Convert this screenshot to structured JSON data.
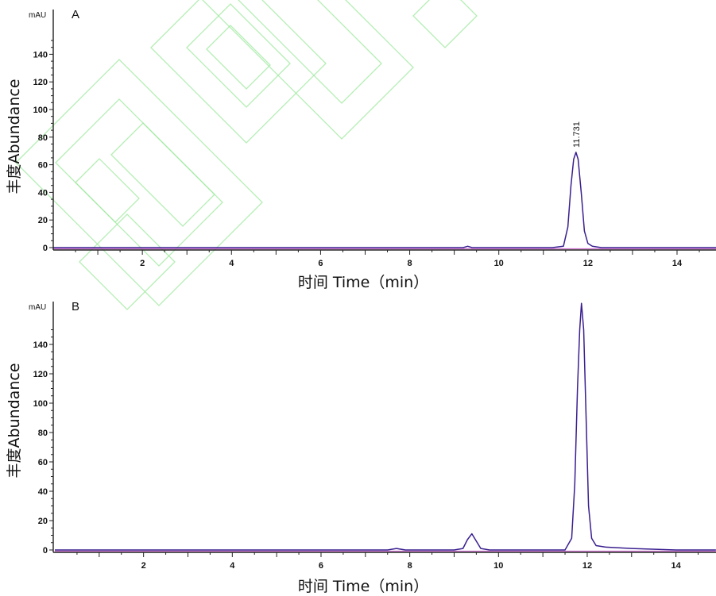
{
  "chart_data": [
    {
      "type": "line",
      "panel": "A",
      "unit": "mAU",
      "ylabel": "丰度Abundance",
      "xlabel": "时间 Time（min）",
      "xlim": [
        0,
        14.9
      ],
      "ylim": [
        -2,
        157
      ],
      "xticks": [
        2,
        4,
        6,
        8,
        10,
        12,
        14
      ],
      "yticks": [
        0,
        20,
        40,
        60,
        80,
        100,
        120,
        140
      ],
      "series": [
        {
          "color": "#3a1f8f",
          "x": [
            0,
            2,
            4,
            6,
            8,
            9.2,
            9.3,
            9.4,
            11.2,
            11.45,
            11.55,
            11.62,
            11.68,
            11.731,
            11.78,
            11.85,
            11.92,
            12.0,
            12.1,
            12.3,
            14.9
          ],
          "y": [
            0,
            0,
            0,
            0,
            0,
            0,
            1,
            0,
            0,
            1,
            15,
            45,
            64,
            69,
            64,
            40,
            12,
            3,
            1,
            0,
            0
          ]
        }
      ],
      "baseline_color": "#d070d0",
      "annotations": [
        {
          "x": 11.731,
          "text": "11.731"
        }
      ]
    },
    {
      "type": "line",
      "panel": "B",
      "unit": "mAU",
      "ylabel": "丰度Abundance",
      "xlabel": "时间 Time（min）",
      "xlim": [
        0,
        14.9
      ],
      "ylim": [
        -2,
        157
      ],
      "xticks": [
        2,
        4,
        6,
        8,
        10,
        12,
        14
      ],
      "yticks": [
        0,
        20,
        40,
        60,
        80,
        100,
        120,
        140
      ],
      "series": [
        {
          "color": "#3a1f8f",
          "x": [
            0,
            1.5,
            4,
            6,
            7.5,
            7.7,
            7.9,
            9.0,
            9.2,
            9.3,
            9.4,
            9.5,
            9.6,
            9.8,
            11.5,
            11.65,
            11.72,
            11.78,
            11.83,
            11.87,
            11.92,
            11.97,
            12.03,
            12.1,
            12.2,
            12.4,
            13,
            14,
            14.9
          ],
          "y": [
            0,
            0,
            0,
            0,
            0,
            1,
            0,
            0,
            1,
            7,
            11,
            6,
            1,
            0,
            0,
            8,
            45,
            110,
            150,
            168,
            150,
            95,
            30,
            8,
            3,
            2,
            1,
            0,
            0
          ]
        }
      ],
      "baseline_color": "#d070d0",
      "annotations": []
    }
  ]
}
